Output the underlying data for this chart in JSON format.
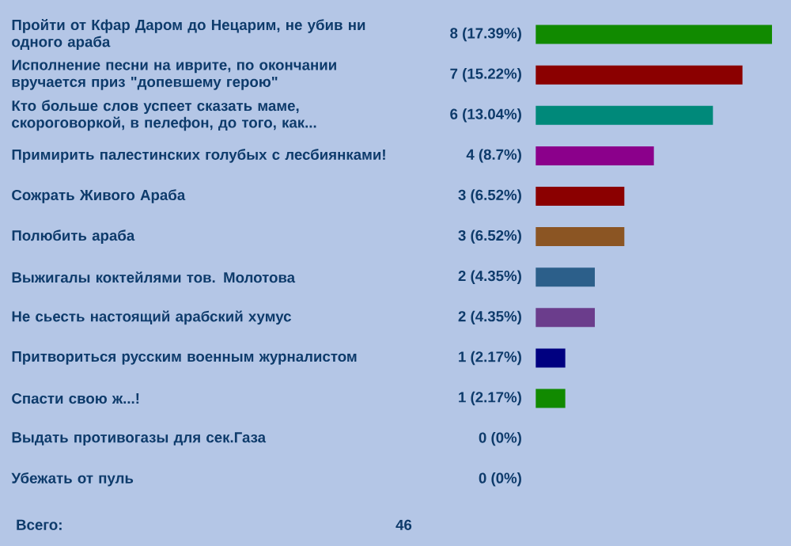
{
  "chart_data": {
    "type": "bar",
    "orientation": "horizontal",
    "categories": [
      "Пройти от Кфар Даром до Нецарим, не убив ни одного араба",
      "Исполнение песни на иврите, по окончании вручается приз \"допевшему герою\"",
      "Кто больше слов успеет сказать маме, скороговоркой, в пелефон, до того, как...",
      "Примирить палестинских голубых с лесбиянками!",
      "Сожрать Живого Араба",
      "Полюбить араба",
      "Выжигалы коктейлями тов. Молотова",
      "Не сьесть настоящий арабский хумус",
      "Притвориться русским военным журналистом",
      "Спасти свою ж...!",
      "Выдать противогазы для сек.Газа",
      "Убежать от пуль"
    ],
    "values": [
      8,
      7,
      6,
      4,
      3,
      3,
      2,
      2,
      1,
      1,
      0,
      0
    ],
    "colors": [
      "#118a00",
      "#8b0000",
      "#00897a",
      "#8b008b",
      "#8b0000",
      "#8b5523",
      "#2c5f8a",
      "#6b3d8c",
      "#000080",
      "#118a00",
      null,
      null
    ],
    "value_labels": [
      "8 (17.39%)",
      "7 (15.22%)",
      "6 (13.04%)",
      "4 (8.7%)",
      "3 (6.52%)",
      "3 (6.52%)",
      "2 (4.35%)",
      "2 (4.35%)",
      "1 (2.17%)",
      "1 (2.17%)",
      "0 (0%)",
      "0 (0%)"
    ],
    "annotations": [
      "Всего:",
      "46"
    ]
  }
}
